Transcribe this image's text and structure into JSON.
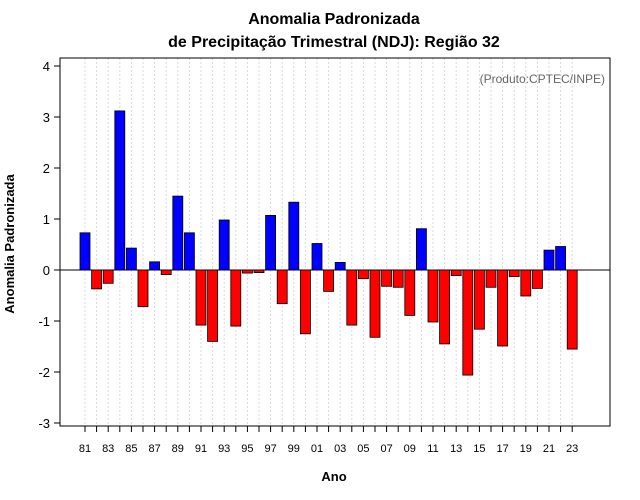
{
  "chart_data": {
    "type": "bar",
    "title_line1": "Anomalia Padronizada",
    "title_line2": "de Precipitação Trimestral (NDJ): Região 32",
    "credit": "(Produto:CPTEC/INPE)",
    "xlabel": "Ano",
    "ylabel": "Anomalia Padronizada",
    "ylim": [
      -3,
      4
    ],
    "yticks": [
      -3,
      -2,
      -1,
      0,
      1,
      2,
      3,
      4
    ],
    "grid": true,
    "positive_color": "#0000ff",
    "negative_color": "#ff0000",
    "categories": [
      "81",
      "82",
      "83",
      "84",
      "85",
      "86",
      "87",
      "88",
      "89",
      "90",
      "91",
      "92",
      "93",
      "94",
      "95",
      "96",
      "97",
      "98",
      "99",
      "00",
      "01",
      "02",
      "03",
      "04",
      "05",
      "06",
      "07",
      "08",
      "09",
      "10",
      "11",
      "12",
      "13",
      "14",
      "15",
      "16",
      "17",
      "18",
      "19",
      "20",
      "21",
      "22",
      "23"
    ],
    "tick_labels": [
      "81",
      "83",
      "85",
      "87",
      "89",
      "91",
      "93",
      "95",
      "97",
      "99",
      "01",
      "03",
      "05",
      "07",
      "09",
      "11",
      "13",
      "15",
      "17",
      "19",
      "21",
      "23"
    ],
    "values": [
      0.73,
      -0.37,
      -0.26,
      3.12,
      0.43,
      -0.72,
      0.16,
      -0.09,
      1.45,
      0.73,
      -1.08,
      -1.4,
      0.98,
      -1.1,
      -0.06,
      -0.05,
      1.07,
      -0.66,
      1.33,
      -1.25,
      0.52,
      -0.42,
      0.15,
      -1.08,
      -0.17,
      -1.32,
      -0.32,
      -0.34,
      -0.89,
      0.81,
      -1.02,
      -1.45,
      -0.11,
      -2.06,
      -1.16,
      -0.34,
      -1.49,
      -0.13,
      -0.51,
      -0.36,
      0.39,
      0.46,
      -1.55
    ]
  }
}
